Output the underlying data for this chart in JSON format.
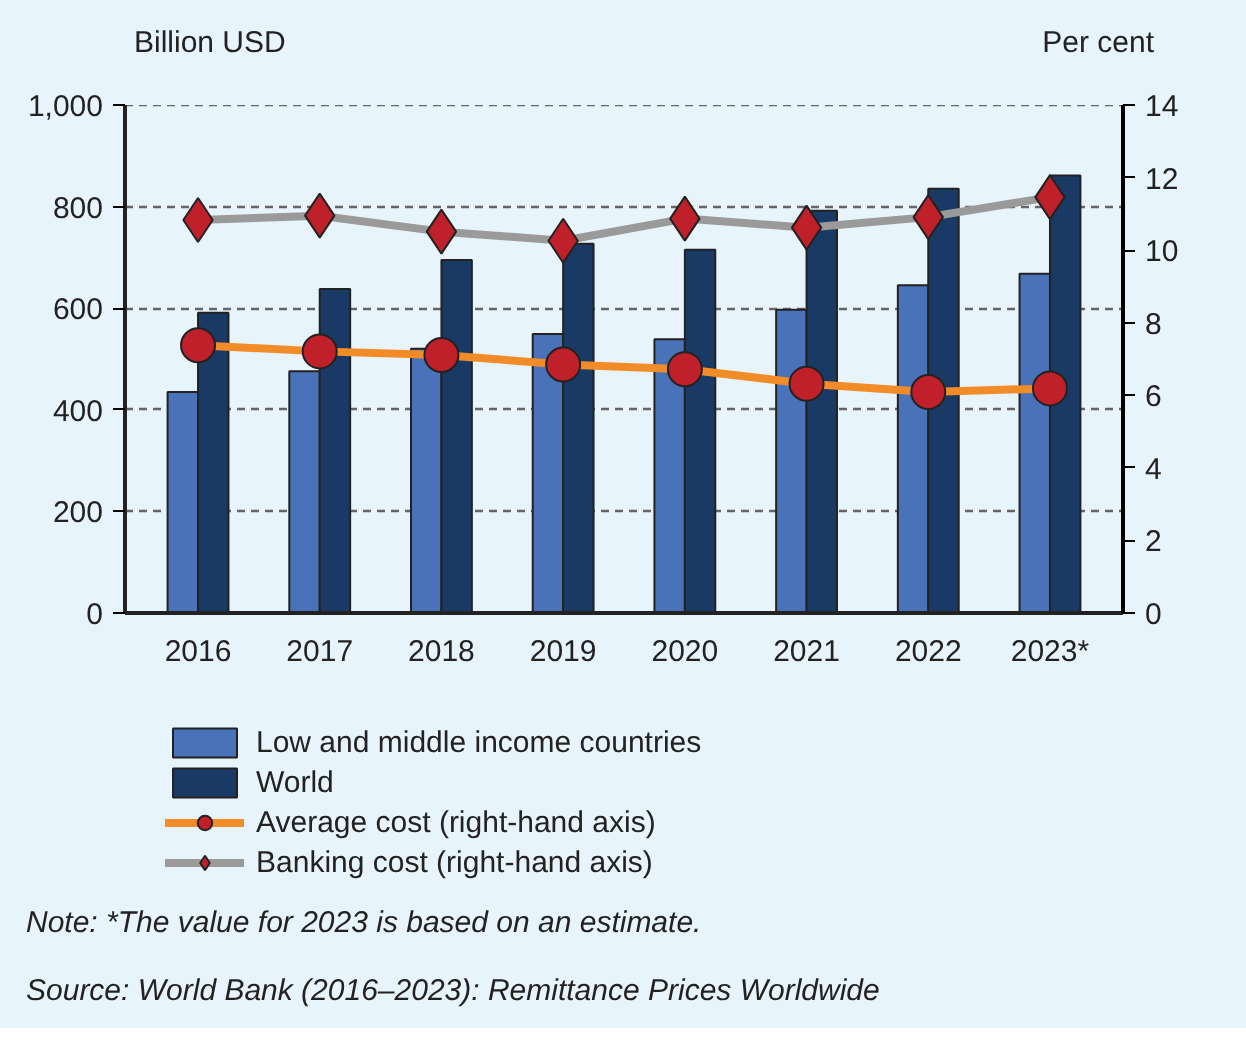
{
  "chart_data": {
    "type": "bar",
    "categories": [
      "2016",
      "2017",
      "2018",
      "2019",
      "2020",
      "2021",
      "2022",
      "2023*"
    ],
    "ylabel": "Billion USD",
    "y2label": "Per cent",
    "ylim": [
      0,
      1000
    ],
    "yticks": [
      0,
      200,
      400,
      600,
      {
        "value": 800,
        "label": "800"
      },
      {
        "value": 1000,
        "label": "1,000"
      }
    ],
    "y2lim": [
      0,
      14
    ],
    "y2ticks": [
      0,
      2,
      4,
      6,
      8,
      10,
      12,
      14
    ],
    "grid": "y",
    "legend": "bottom",
    "series": [
      {
        "name": "Low and middle income countries",
        "color": "#4a72b8",
        "values": [
          435,
          476,
          520,
          549,
          539,
          597,
          645,
          668
        ]
      },
      {
        "name": "World",
        "color": "#1a3a66",
        "values": [
          591,
          638,
          695,
          727,
          715,
          792,
          835,
          861
        ]
      },
      {
        "name": "Average cost (right-hand axis)",
        "type": "line",
        "axis": "y2",
        "marker": "circle",
        "color": "#f28c28",
        "values": [
          7.38,
          7.21,
          7.11,
          6.85,
          6.72,
          6.32,
          6.09,
          6.19
        ]
      },
      {
        "name": "Banking cost (right-hand axis)",
        "type": "line",
        "axis": "y2",
        "marker": "diamond",
        "color": "#9a9a9a",
        "values": [
          10.83,
          10.95,
          10.51,
          10.26,
          10.87,
          10.62,
          10.91,
          11.46
        ]
      }
    ],
    "annotations": [
      "Note: *The value for 2023 is based on an estimate.",
      "Source: World Bank (2016–2023): Remittance Prices Worldwide"
    ]
  }
}
